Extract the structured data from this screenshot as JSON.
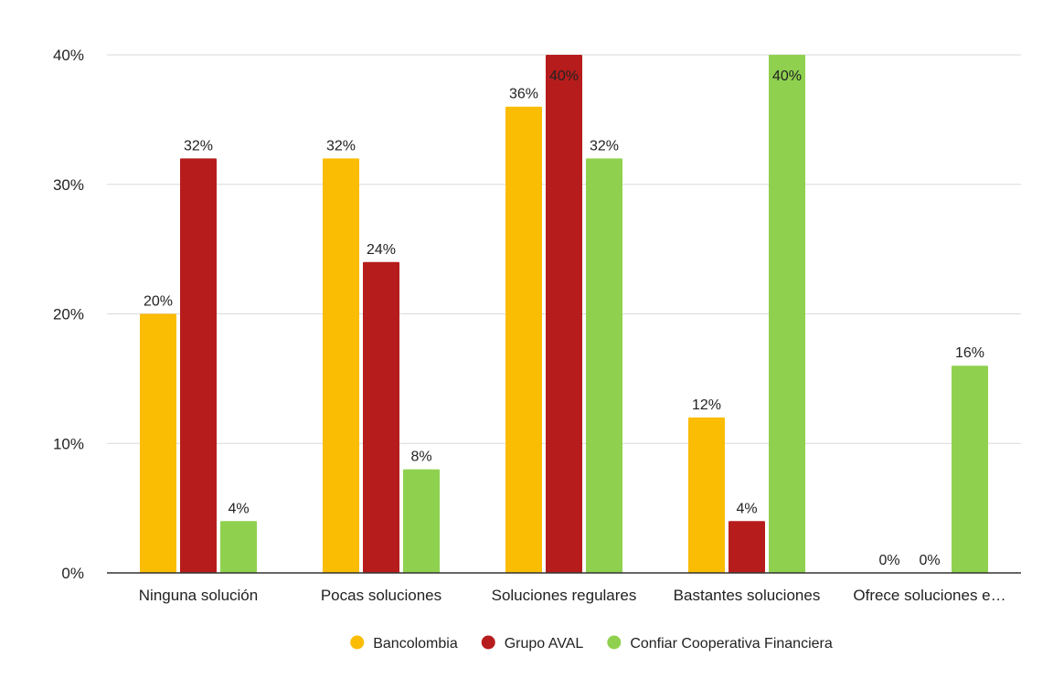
{
  "chart_data": {
    "type": "bar",
    "title": "",
    "xlabel": "",
    "ylabel": "",
    "categories": [
      "Ninguna solución",
      "Pocas soluciones",
      "Soluciones regulares",
      "Bastantes soluciones",
      "Ofrece soluciones e…"
    ],
    "series": [
      {
        "name": "Bancolombia",
        "color": "#FBBC04",
        "values": [
          20,
          32,
          36,
          12,
          0
        ]
      },
      {
        "name": "Grupo AVAL",
        "color": "#B71C1C",
        "values": [
          32,
          24,
          40,
          4,
          0
        ]
      },
      {
        "name": "Confiar Cooperativa Financiera",
        "color": "#8FD14F",
        "values": [
          4,
          8,
          32,
          40,
          16
        ]
      }
    ],
    "value_suffix": "%",
    "ylim": [
      0,
      40
    ],
    "yticks": [
      0,
      10,
      20,
      30,
      40
    ],
    "ytick_labels": [
      "0%",
      "10%",
      "20%",
      "30%",
      "40%"
    ],
    "grid": true,
    "legend_position": "bottom"
  }
}
